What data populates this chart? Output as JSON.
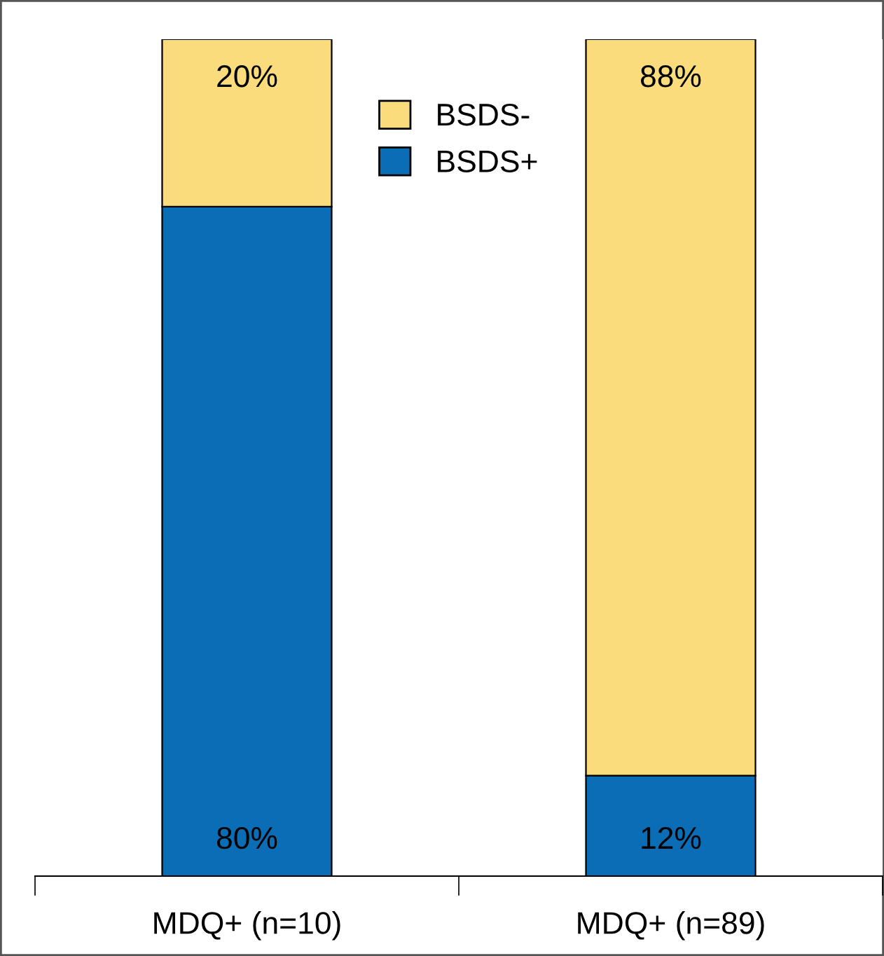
{
  "chart_data": {
    "type": "bar",
    "stacked": true,
    "categories": [
      "MDQ+ (n=10)",
      "MDQ+ (n=89)"
    ],
    "series": [
      {
        "name": "BSDS+",
        "color": "#0a6db5",
        "values": [
          80,
          12
        ],
        "value_labels": [
          "80%",
          "12%"
        ]
      },
      {
        "name": "BSDS-",
        "color": "#fbdc7c",
        "values": [
          20,
          88
        ],
        "value_labels": [
          "20%",
          "88%"
        ]
      }
    ],
    "legend": "top",
    "grid": false
  }
}
